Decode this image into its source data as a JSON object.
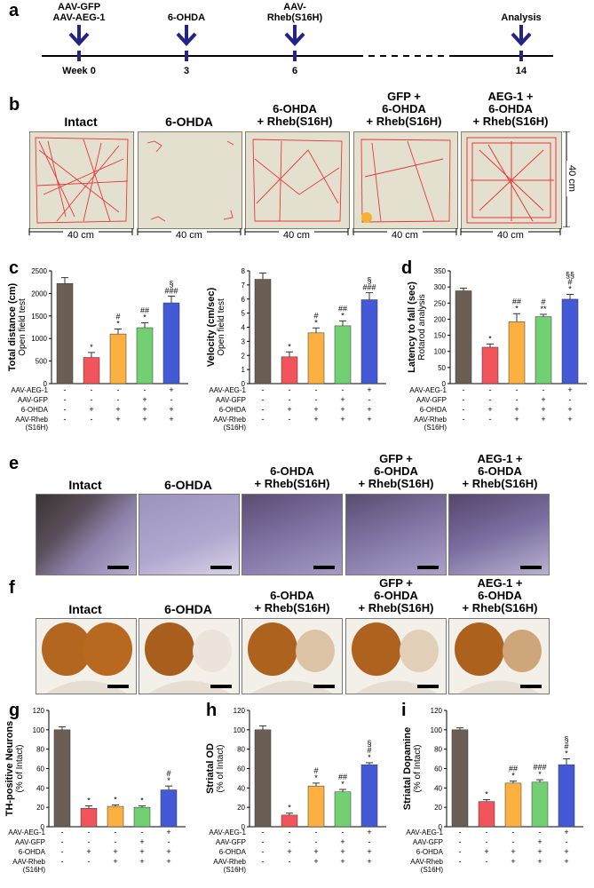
{
  "panel_labels": [
    "a",
    "b",
    "c",
    "d",
    "e",
    "f",
    "g",
    "h",
    "i"
  ],
  "timeline": {
    "events": [
      {
        "label": "AAV-GFP\nAAV-AEG-1",
        "week": "Week 0"
      },
      {
        "label": "6-OHDA",
        "week": "3"
      },
      {
        "label": "AAV-\nRheb(S16H)",
        "week": "6"
      },
      {
        "label": "Analysis",
        "week": "14"
      }
    ]
  },
  "groups": [
    "Intact",
    "6-OHDA",
    "6-OHDA\n+ Rheb(S16H)",
    "GFP +\n6-OHDA\n+ Rheb(S16H)",
    "AEG-1 +\n6-OHDA\n+ Rheb(S16H)"
  ],
  "scale_labels": {
    "width": "40 cm",
    "height": "40 cm"
  },
  "treatment_rows": [
    {
      "label": "AAV-AEG-1",
      "marks": [
        "-",
        "-",
        "-",
        "-",
        "+"
      ]
    },
    {
      "label": "AAV-GFP",
      "marks": [
        "-",
        "-",
        "-",
        "+",
        "-"
      ]
    },
    {
      "label": "6-OHDA",
      "marks": [
        "-",
        "+",
        "+",
        "+",
        "+"
      ]
    },
    {
      "label": "AAV-Rheb\n(S16H)",
      "marks": [
        "-",
        "-",
        "+",
        "+",
        "+"
      ]
    }
  ],
  "colors": {
    "intact": "#6b5e55",
    "ohda": "#f2545b",
    "rheb": "#fbb040",
    "gfp": "#72cf72",
    "aeg": "#4459d6",
    "track": "#e8383a"
  },
  "chart_data": [
    {
      "panel": "c",
      "type": "bar",
      "ylabel": "Total distance (cm)",
      "sublabel": "Open field test",
      "ylim": [
        0,
        2500
      ],
      "ticks": [
        0,
        500,
        1000,
        1500,
        2000,
        2500
      ],
      "values": [
        2220,
        580,
        1100,
        1240,
        1790
      ],
      "errors": [
        130,
        110,
        110,
        110,
        150
      ],
      "marks": [
        "",
        "*",
        "#\n*",
        "##\n*",
        "§\n###"
      ]
    },
    {
      "panel": "c2",
      "type": "bar",
      "ylabel": "Velocity (cm/sec)",
      "sublabel": "Open field test",
      "ylim": [
        0,
        8
      ],
      "ticks": [
        0,
        1,
        2,
        3,
        4,
        5,
        6,
        7,
        8
      ],
      "values": [
        7.4,
        1.9,
        3.6,
        4.1,
        5.95
      ],
      "errors": [
        0.45,
        0.35,
        0.35,
        0.35,
        0.5
      ],
      "marks": [
        "",
        "*",
        "#\n*",
        "##\n*",
        "§\n###"
      ]
    },
    {
      "panel": "d",
      "type": "bar",
      "ylabel": "Latency to fall (sec)",
      "sublabel": "Rotarod analysis",
      "ylim": [
        0,
        350
      ],
      "ticks": [
        0,
        50,
        100,
        150,
        200,
        250,
        300,
        350
      ],
      "values": [
        288,
        113,
        192,
        208,
        262
      ],
      "errors": [
        8,
        10,
        25,
        7,
        15
      ],
      "marks": [
        "",
        "*",
        "##\n*",
        "#\n**",
        "§§\n#\n*"
      ]
    },
    {
      "panel": "g",
      "type": "bar",
      "ylabel": "TH-positive Neurons",
      "sublabel": "(% of Intact)",
      "ylim": [
        0,
        120
      ],
      "ticks": [
        0,
        20,
        40,
        60,
        80,
        100,
        120
      ],
      "values": [
        100,
        19,
        21,
        20,
        38
      ],
      "errors": [
        3,
        2.5,
        1.5,
        1.5,
        4
      ],
      "marks": [
        "",
        "*",
        "*",
        "*",
        "#\n*"
      ]
    },
    {
      "panel": "h",
      "type": "bar",
      "ylabel": "Striatal OD",
      "sublabel": "(% of Intact)",
      "ylim": [
        0,
        120
      ],
      "ticks": [
        0,
        20,
        40,
        60,
        80,
        100,
        120
      ],
      "values": [
        100,
        12,
        42,
        36,
        64
      ],
      "errors": [
        4,
        2,
        3,
        2.5,
        2
      ],
      "marks": [
        "",
        "*",
        "#\n*",
        "##\n*",
        "§\n#\n*"
      ]
    },
    {
      "panel": "i",
      "type": "bar",
      "ylabel": "Striatal Dopamine",
      "sublabel": "(% of Intact)",
      "ylim": [
        0,
        120
      ],
      "ticks": [
        0,
        20,
        40,
        60,
        80,
        100,
        120
      ],
      "values": [
        100,
        26,
        45,
        46,
        64
      ],
      "errors": [
        2,
        2,
        2,
        2.5,
        6
      ],
      "marks": [
        "",
        "*",
        "##\n*",
        "###\n*",
        "§\n#\n*"
      ]
    }
  ]
}
